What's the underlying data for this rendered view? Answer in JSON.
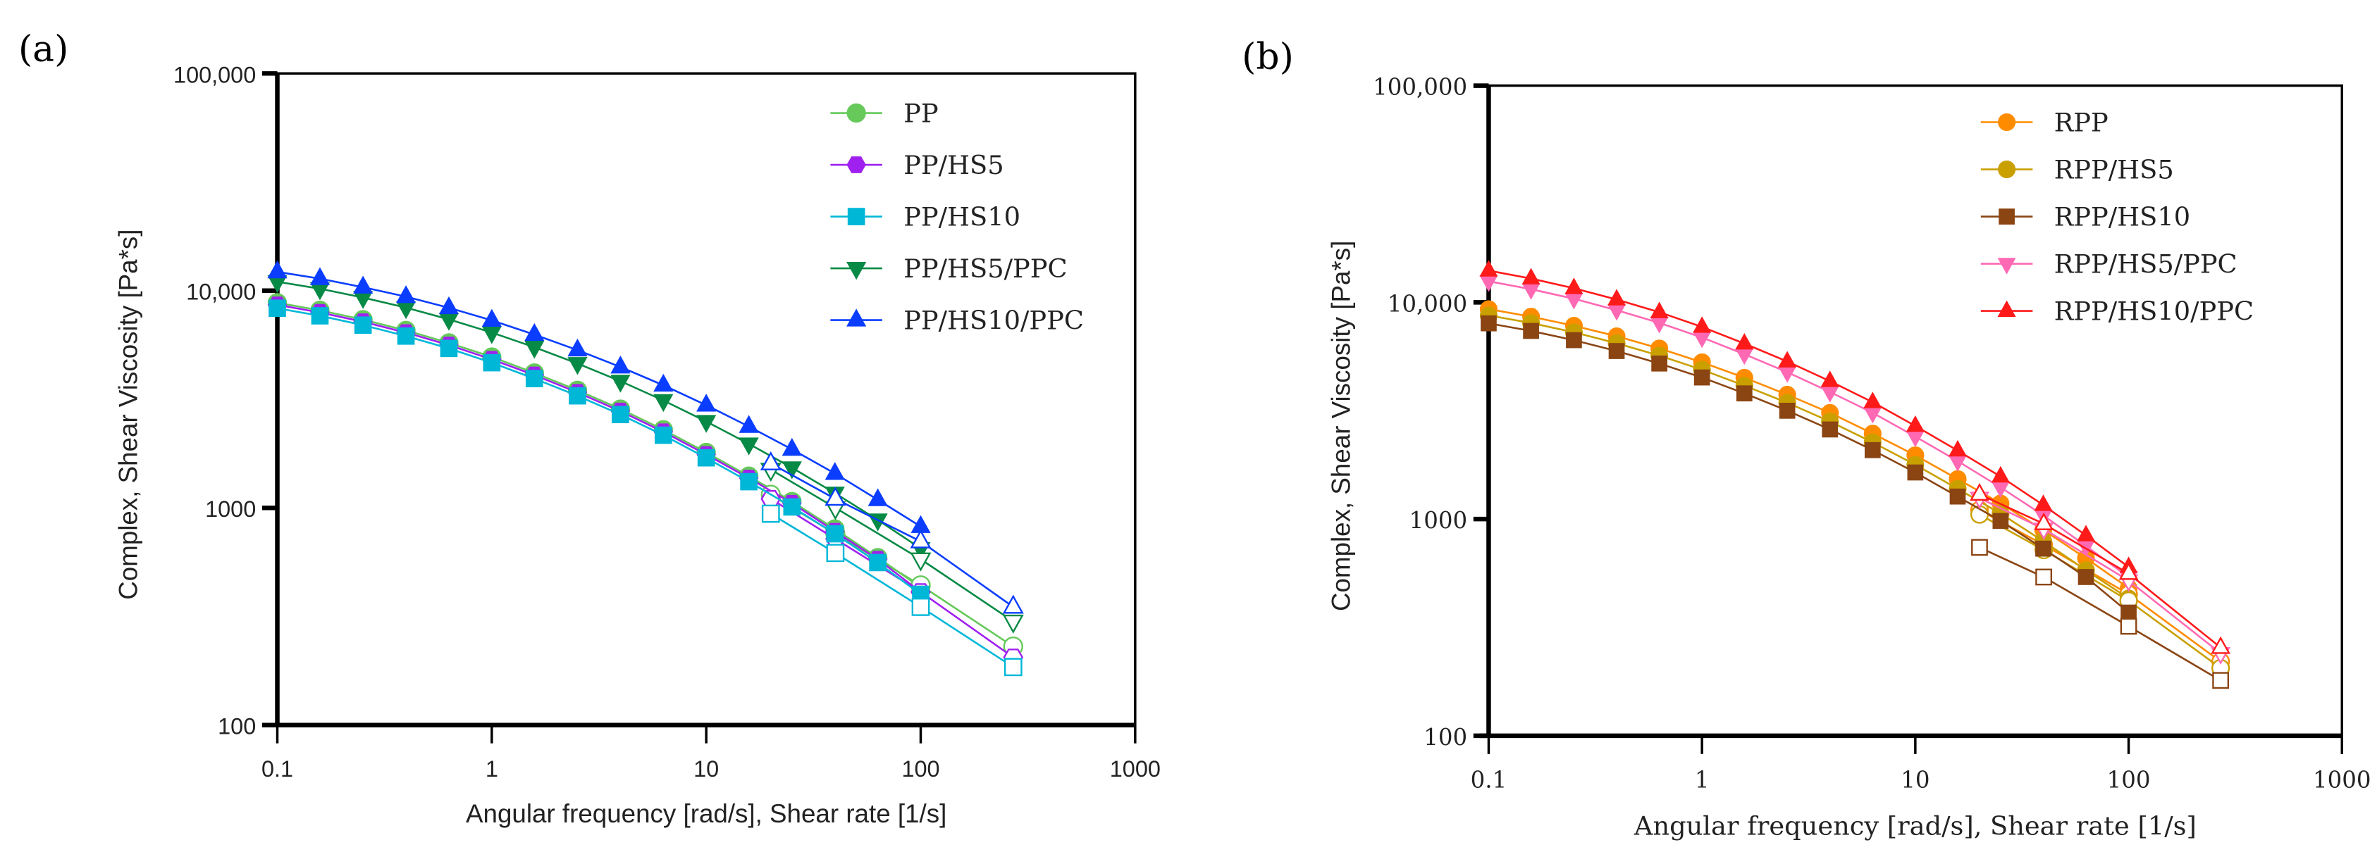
{
  "chart_data": [
    {
      "panel_label": "(a)",
      "type": "scatter",
      "xscale": "log",
      "yscale": "log",
      "xlim": [
        0.1,
        1000
      ],
      "ylim": [
        100,
        100000
      ],
      "xticks": [
        "0.1",
        "1",
        "10",
        "100",
        "1000"
      ],
      "yticks": [
        "100",
        "1000",
        "10,000",
        "100,000"
      ],
      "xlabel": "Angular frequency [rad/s], Shear rate [1/s]",
      "ylabel": "Complex, Shear Viscosity [Pa*s]",
      "legend_position": "top-right",
      "x": [
        0.1,
        0.158,
        0.251,
        0.398,
        0.631,
        1,
        1.58,
        2.51,
        3.98,
        6.31,
        10,
        15.8,
        25.1,
        39.8,
        63.1,
        100
      ],
      "x_shear": [
        20,
        40,
        100,
        270
      ],
      "series": [
        {
          "name": "PP",
          "color": "#66c95a",
          "marker": "circle",
          "values": [
            8800,
            8120,
            7360,
            6560,
            5750,
            4950,
            4180,
            3480,
            2850,
            2290,
            1800,
            1400,
            1070,
            800,
            590,
            430
          ],
          "shear_values": [
            1150,
            760,
            440,
            230
          ]
        },
        {
          "name": "PP/HS5",
          "color": "#a020f0",
          "marker": "hexagon",
          "values": [
            8600,
            7940,
            7190,
            6410,
            5620,
            4830,
            4090,
            3400,
            2790,
            2240,
            1760,
            1370,
            1050,
            780,
            580,
            410
          ],
          "shear_values": [
            1100,
            720,
            410,
            205
          ]
        },
        {
          "name": "PP/HS10",
          "color": "#00b7d8",
          "marker": "square",
          "values": [
            8300,
            7660,
            6940,
            6180,
            5420,
            4660,
            3940,
            3280,
            2690,
            2160,
            1700,
            1320,
            1010,
            760,
            560,
            400
          ],
          "shear_values": [
            940,
            620,
            350,
            185
          ]
        },
        {
          "name": "PP/HS5/PPC",
          "color": "#078a45",
          "marker": "triangle-down",
          "values": [
            11000,
            10200,
            9300,
            8350,
            7380,
            6410,
            5490,
            4620,
            3830,
            3120,
            2500,
            1970,
            1530,
            1170,
            880,
            650
          ],
          "shear_values": [
            1500,
            1000,
            580,
            300
          ]
        },
        {
          "name": "PP/HS10/PPC",
          "color": "#0a3dff",
          "marker": "triangle-up",
          "values": [
            12200,
            11360,
            10380,
            9380,
            8340,
            7300,
            6280,
            5330,
            4450,
            3670,
            2970,
            2370,
            1860,
            1440,
            1090,
            820
          ],
          "shear_values": [
            1600,
            1100,
            700,
            350
          ]
        }
      ]
    },
    {
      "panel_label": "(b)",
      "type": "scatter",
      "xscale": "log",
      "yscale": "log",
      "xlim": [
        0.1,
        1000
      ],
      "ylim": [
        100,
        100000
      ],
      "xticks": [
        "0.1",
        "1",
        "10",
        "100",
        "1000"
      ],
      "yticks": [
        "100",
        "1000",
        "10,000",
        "100,000"
      ],
      "xlabel": "Angular frequency [rad/s], Shear rate [1/s]",
      "ylabel": "Complex, Shear Viscosity [Pa*s]",
      "legend_position": "top-right",
      "x": [
        0.1,
        0.158,
        0.251,
        0.398,
        0.631,
        1,
        1.58,
        2.51,
        3.98,
        6.31,
        10,
        15.8,
        25.1,
        39.8,
        63.1,
        100
      ],
      "x_shear": [
        20,
        40,
        100,
        270
      ],
      "series": [
        {
          "name": "RPP",
          "color": "#ff8c00",
          "marker": "circle",
          "values": [
            9300,
            8590,
            7800,
            6970,
            6130,
            5290,
            4490,
            3750,
            3090,
            2480,
            1970,
            1530,
            1180,
            890,
            660,
            480
          ],
          "shear_values": [
            1100,
            760,
            450,
            220
          ]
        },
        {
          "name": "RPP/HS5",
          "color": "#c9a000",
          "marker": "circle",
          "values": [
            8700,
            8030,
            7270,
            6480,
            5680,
            4890,
            4130,
            3440,
            2820,
            2260,
            1780,
            1380,
            1060,
            790,
            580,
            430
          ],
          "shear_values": [
            1050,
            720,
            420,
            205
          ]
        },
        {
          "name": "RPP/HS10",
          "color": "#8b4513",
          "marker": "square",
          "values": [
            8000,
            7380,
            6690,
            5960,
            5220,
            4500,
            3800,
            3160,
            2590,
            2080,
            1640,
            1270,
            980,
            730,
            540,
            370
          ],
          "shear_values": [
            740,
            540,
            320,
            180
          ]
        },
        {
          "name": "RPP/HS5/PPC",
          "color": "#ff69b4",
          "marker": "triangle-down",
          "values": [
            12500,
            11500,
            10380,
            9200,
            8040,
            6880,
            5760,
            4760,
            3860,
            3090,
            2400,
            1850,
            1400,
            1040,
            750,
            540
          ],
          "shear_values": [
            1250,
            900,
            520,
            240
          ]
        },
        {
          "name": "RPP/HS10/PPC",
          "color": "#ff1a1a",
          "marker": "triangle-up",
          "values": [
            14000,
            12880,
            11620,
            10300,
            9000,
            7700,
            6450,
            5330,
            4330,
            3460,
            2690,
            2070,
            1570,
            1160,
            840,
            600
          ],
          "shear_values": [
            1300,
            950,
            560,
            255
          ]
        }
      ]
    }
  ]
}
